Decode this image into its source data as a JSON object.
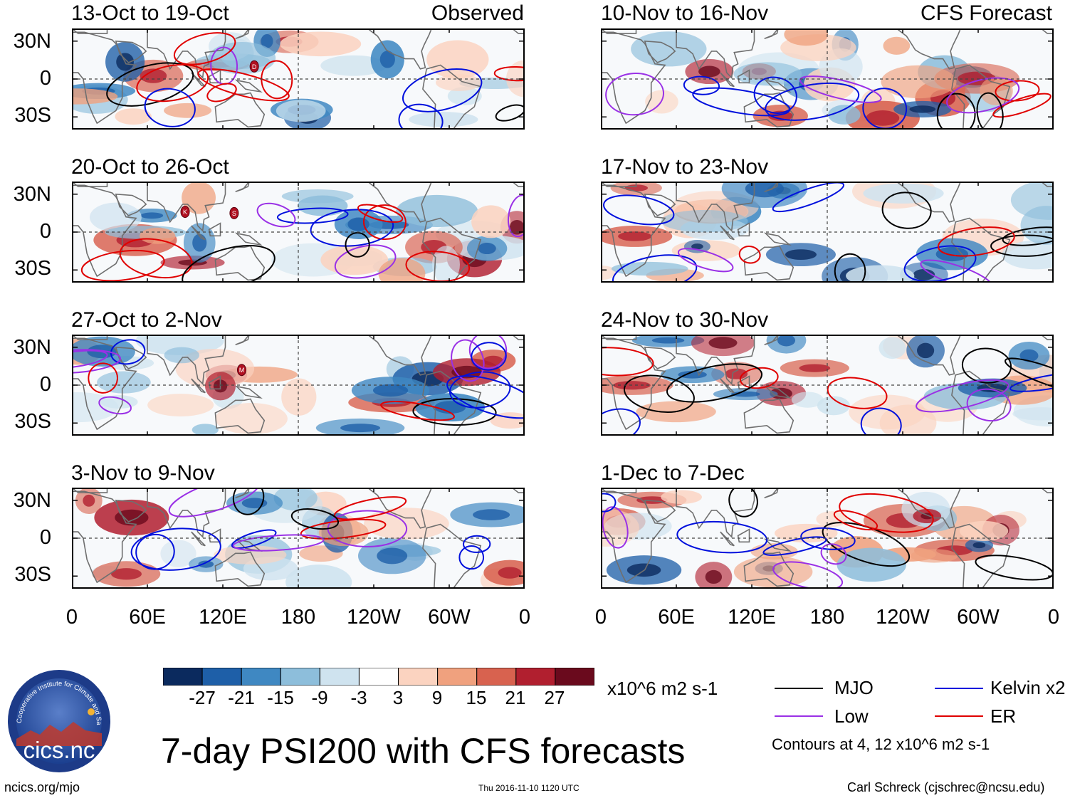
{
  "panels": [
    {
      "title": "13-Oct to 19-Oct",
      "tag": "Observed",
      "column": "left",
      "row": 0,
      "seed": 1
    },
    {
      "title": "20-Oct to 26-Oct",
      "tag": "",
      "column": "left",
      "row": 1,
      "seed": 2
    },
    {
      "title": "27-Oct to 2-Nov",
      "tag": "",
      "column": "left",
      "row": 2,
      "seed": 3
    },
    {
      "title": "3-Nov to 9-Nov",
      "tag": "",
      "column": "left",
      "row": 3,
      "seed": 4
    },
    {
      "title": "10-Nov to 16-Nov",
      "tag": "CFS Forecast",
      "column": "right",
      "row": 0,
      "seed": 5
    },
    {
      "title": "17-Nov to 23-Nov",
      "tag": "",
      "column": "right",
      "row": 1,
      "seed": 6
    },
    {
      "title": "24-Nov to 30-Nov",
      "tag": "",
      "column": "right",
      "row": 2,
      "seed": 7
    },
    {
      "title": "1-Dec to 7-Dec",
      "tag": "",
      "column": "right",
      "row": 3,
      "seed": 8
    }
  ],
  "lat_labels": [
    "30N",
    "0",
    "30S"
  ],
  "lon_labels": [
    "0",
    "60E",
    "120E",
    "180",
    "120W",
    "60W",
    "0"
  ],
  "colorbar": {
    "labels": [
      "-27",
      "-21",
      "-15",
      "-9",
      "-3",
      "3",
      "9",
      "15",
      "21",
      "27"
    ],
    "colors": [
      "#0b2a5e",
      "#1e5fa8",
      "#3f88c2",
      "#8dbedb",
      "#cfe3ef",
      "#ffffff",
      "#fbd3c0",
      "#f0a17e",
      "#d8624f",
      "#b11f2f",
      "#6a0a1d"
    ],
    "units": "x10^6 m2 s-1"
  },
  "legend": {
    "items": [
      {
        "label": "MJO",
        "color": "#000000"
      },
      {
        "label": "Kelvin x2",
        "color": "#0010dd"
      },
      {
        "label": "Low",
        "color": "#9a30e6"
      },
      {
        "label": "ER",
        "color": "#e00000"
      }
    ],
    "note": "Contours at 4, 12 x10^6 m2 s-1"
  },
  "title": "7-day PSI200 with CFS forecasts",
  "logo_text": "cics.nc",
  "logo_ring_text": "Cooperative Institute for Climate and Satellites",
  "footer": {
    "left": "ncics.org/mjo",
    "center": "Thu 2016-11-10 1120 UTC",
    "right": "Carl Schreck (cjschrec@ncsu.edu)"
  },
  "storm_markers": [
    {
      "panel": 0,
      "letter": "D"
    },
    {
      "panel": 1,
      "letter": "K"
    },
    {
      "panel": 1,
      "letter": "S"
    },
    {
      "panel": 2,
      "letter": "M"
    }
  ]
}
